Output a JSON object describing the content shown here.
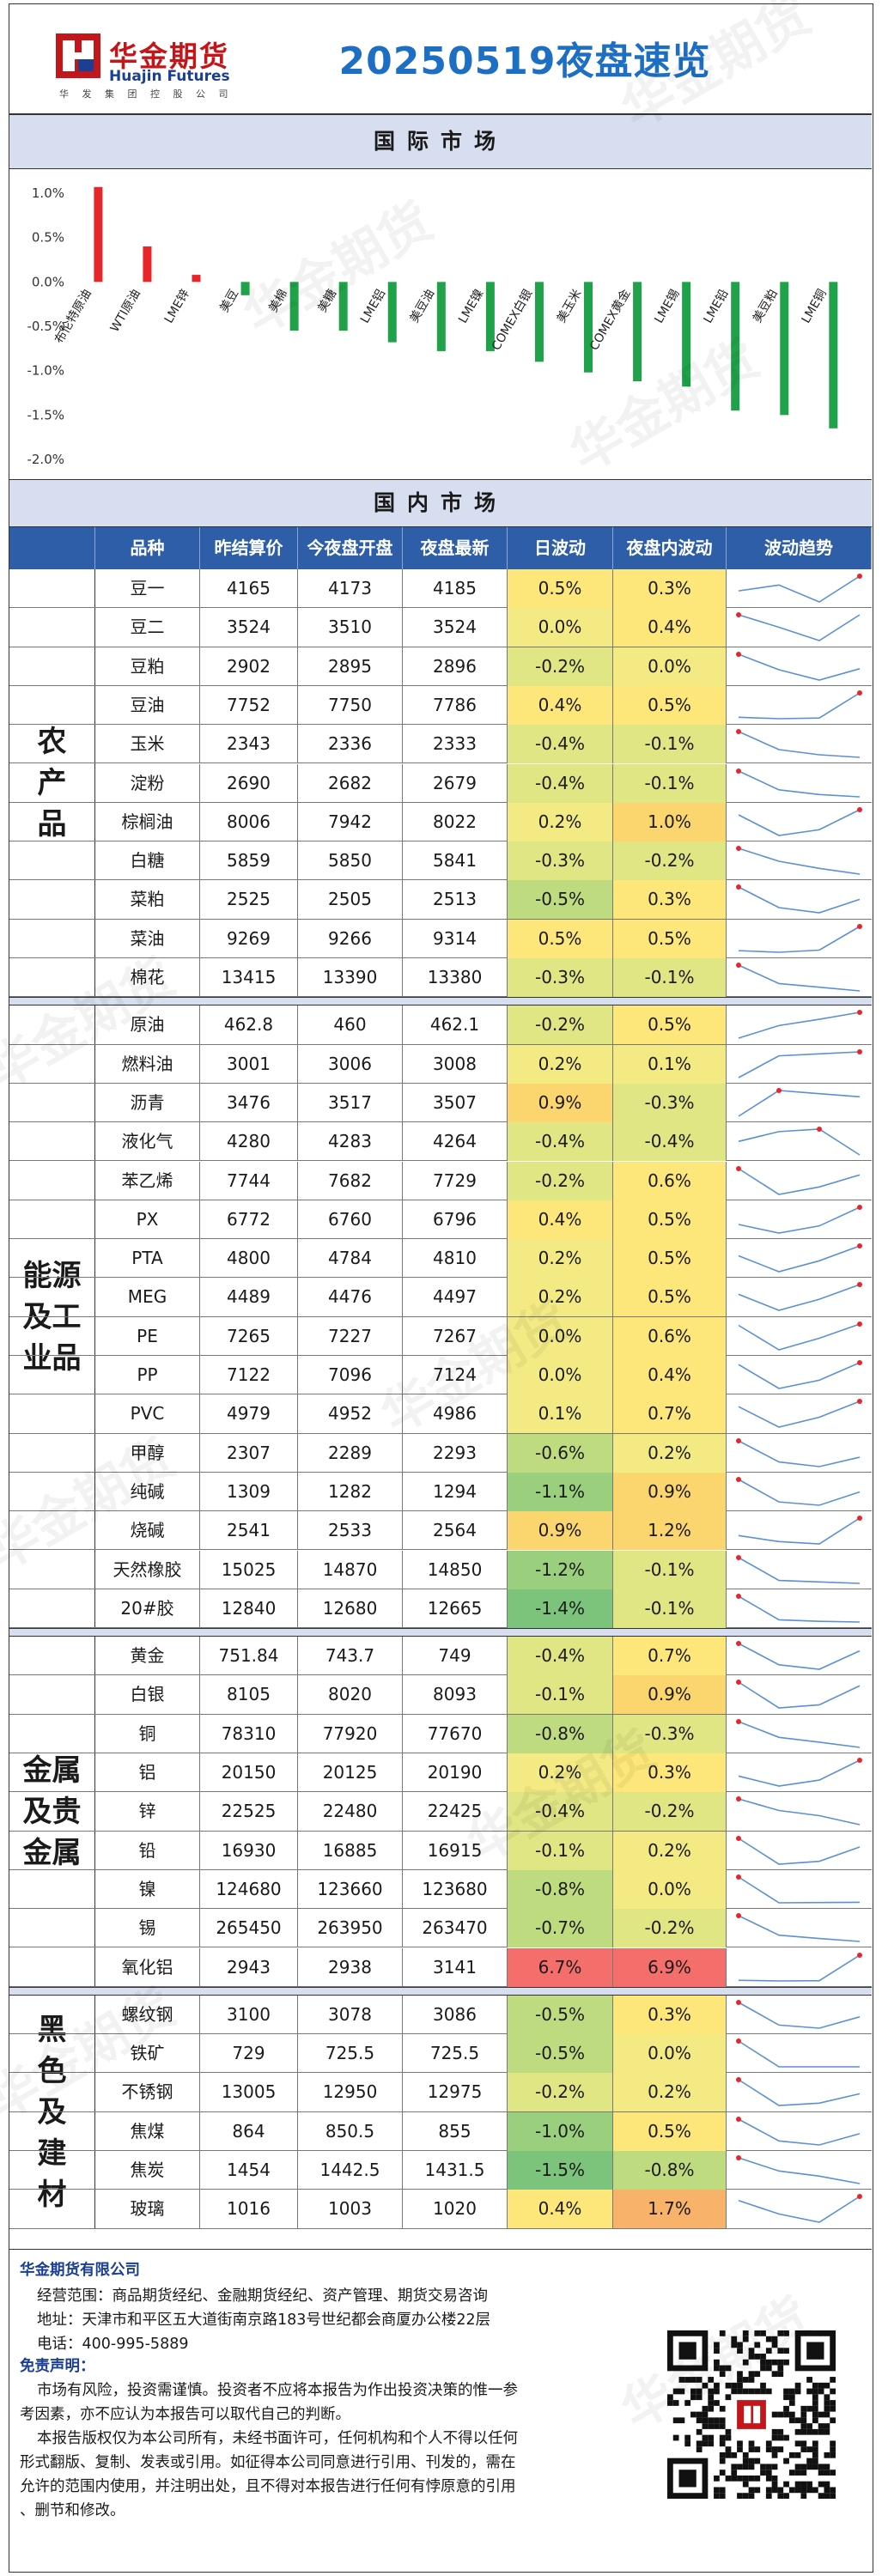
{
  "header": {
    "brand_cn": "华金期货",
    "brand_en": "Huajin Futures",
    "brand_sub": "华 发 集 团 控 股 公 司",
    "title": "20250519夜盘速览"
  },
  "sections": {
    "international": "国际市场",
    "domestic": "国内市场"
  },
  "colors": {
    "up": "#e8262a",
    "down": "#20a24a",
    "header_blue": "#2e5ea8",
    "title_blue": "#1d6fc4",
    "spark_line": "#5b8fd6",
    "spark_dot": "#e8262a"
  },
  "chart_data": {
    "type": "bar",
    "title": "",
    "categories": [
      "布伦特原油",
      "WTI原油",
      "LME锌",
      "美豆",
      "美棉",
      "美糖",
      "LME铝",
      "美豆油",
      "LME镍",
      "COMEX白银",
      "美玉米",
      "COMEX黄金",
      "LME锡",
      "LME铅",
      "美豆粕",
      "LME铜"
    ],
    "values": [
      1.07,
      0.4,
      0.08,
      -0.15,
      -0.55,
      -0.55,
      -0.68,
      -0.78,
      -0.78,
      -0.9,
      -1.02,
      -1.12,
      -1.18,
      -1.45,
      -1.5,
      -1.65
    ],
    "ylim": [
      -2.0,
      1.0
    ],
    "yticks": [
      "1.0%",
      "0.5%",
      "0.0%",
      "-0.5%",
      "-1.0%",
      "-1.5%",
      "-2.0%"
    ],
    "grid": false
  },
  "table": {
    "headers": [
      "品种",
      "昨结算价",
      "今夜盘开盘",
      "夜盘最新",
      "日波动",
      "夜盘内波动",
      "波动趋势"
    ],
    "groups": [
      {
        "label": "农产品",
        "rows": [
          {
            "name": "豆一",
            "prev": "4165",
            "open": "4173",
            "last": "4185",
            "day": "0.5%",
            "night": "0.3%",
            "day_v": 0.5,
            "night_v": 0.3,
            "trend": [
              4165,
              4173,
              4150,
              4185
            ]
          },
          {
            "name": "豆二",
            "prev": "3524",
            "open": "3510",
            "last": "3524",
            "day": "0.0%",
            "night": "0.4%",
            "day_v": 0.0,
            "night_v": 0.4,
            "trend": [
              3524,
              3510,
              3495,
              3524
            ]
          },
          {
            "name": "豆粕",
            "prev": "2902",
            "open": "2895",
            "last": "2896",
            "day": "-0.2%",
            "night": "0.0%",
            "day_v": -0.2,
            "night_v": 0.0,
            "trend": [
              2910,
              2895,
              2885,
              2896
            ]
          },
          {
            "name": "豆油",
            "prev": "7752",
            "open": "7750",
            "last": "7786",
            "day": "0.4%",
            "night": "0.5%",
            "day_v": 0.4,
            "night_v": 0.5,
            "trend": [
              7752,
              7750,
              7751,
              7786
            ]
          },
          {
            "name": "玉米",
            "prev": "2343",
            "open": "2336",
            "last": "2333",
            "day": "-0.4%",
            "night": "-0.1%",
            "day_v": -0.4,
            "night_v": -0.1,
            "trend": [
              2343,
              2336,
              2334,
              2333
            ]
          },
          {
            "name": "淀粉",
            "prev": "2690",
            "open": "2682",
            "last": "2679",
            "day": "-0.4%",
            "night": "-0.1%",
            "day_v": -0.4,
            "night_v": -0.1,
            "trend": [
              2690,
              2682,
              2680,
              2679
            ]
          },
          {
            "name": "棕榈油",
            "prev": "8006",
            "open": "7942",
            "last": "8022",
            "day": "0.2%",
            "night": "1.0%",
            "day_v": 0.2,
            "night_v": 1.0,
            "trend": [
              8006,
              7942,
              7960,
              8022
            ]
          },
          {
            "name": "白糖",
            "prev": "5859",
            "open": "5850",
            "last": "5841",
            "day": "-0.3%",
            "night": "-0.2%",
            "day_v": -0.3,
            "night_v": -0.2,
            "trend": [
              5859,
              5850,
              5845,
              5841
            ]
          },
          {
            "name": "菜粕",
            "prev": "2525",
            "open": "2505",
            "last": "2513",
            "day": "-0.5%",
            "night": "0.3%",
            "day_v": -0.5,
            "night_v": 0.3,
            "trend": [
              2525,
              2505,
              2500,
              2513
            ]
          },
          {
            "name": "菜油",
            "prev": "9269",
            "open": "9266",
            "last": "9314",
            "day": "0.5%",
            "night": "0.5%",
            "day_v": 0.5,
            "night_v": 0.5,
            "trend": [
              9269,
              9266,
              9270,
              9314
            ]
          },
          {
            "name": "棉花",
            "prev": "13415",
            "open": "13390",
            "last": "13380",
            "day": "-0.3%",
            "night": "-0.1%",
            "day_v": -0.3,
            "night_v": -0.1,
            "trend": [
              13415,
              13390,
              13385,
              13380
            ]
          }
        ]
      },
      {
        "label": "能源及工业品",
        "rows": [
          {
            "name": "原油",
            "prev": "462.8",
            "open": "460",
            "last": "462.1",
            "day": "-0.2%",
            "night": "0.5%",
            "day_v": -0.2,
            "night_v": 0.5,
            "trend": [
              458,
              460,
              461,
              462.1
            ]
          },
          {
            "name": "燃料油",
            "prev": "3001",
            "open": "3006",
            "last": "3008",
            "day": "0.2%",
            "night": "0.1%",
            "day_v": 0.2,
            "night_v": 0.1,
            "trend": [
              2995,
              3006,
              3007,
              3008
            ]
          },
          {
            "name": "沥青",
            "prev": "3476",
            "open": "3517",
            "last": "3507",
            "day": "0.9%",
            "night": "-0.3%",
            "day_v": 0.9,
            "night_v": -0.3,
            "trend": [
              3476,
              3517,
              3512,
              3507
            ]
          },
          {
            "name": "液化气",
            "prev": "4280",
            "open": "4283",
            "last": "4264",
            "day": "-0.4%",
            "night": "-0.4%",
            "day_v": -0.4,
            "night_v": -0.4,
            "trend": [
              4275,
              4283,
              4285,
              4264
            ]
          },
          {
            "name": "苯乙烯",
            "prev": "7744",
            "open": "7682",
            "last": "7729",
            "day": "-0.2%",
            "night": "0.6%",
            "day_v": -0.2,
            "night_v": 0.6,
            "trend": [
              7744,
              7682,
              7700,
              7729
            ]
          },
          {
            "name": "PX",
            "prev": "6772",
            "open": "6760",
            "last": "6796",
            "day": "0.4%",
            "night": "0.5%",
            "day_v": 0.4,
            "night_v": 0.5,
            "trend": [
              6772,
              6760,
              6770,
              6796
            ]
          },
          {
            "name": "PTA",
            "prev": "4800",
            "open": "4784",
            "last": "4810",
            "day": "0.2%",
            "night": "0.5%",
            "day_v": 0.2,
            "night_v": 0.5,
            "trend": [
              4800,
              4784,
              4795,
              4810
            ]
          },
          {
            "name": "MEG",
            "prev": "4489",
            "open": "4476",
            "last": "4497",
            "day": "0.2%",
            "night": "0.5%",
            "day_v": 0.2,
            "night_v": 0.5,
            "trend": [
              4489,
              4476,
              4485,
              4497
            ]
          },
          {
            "name": "PE",
            "prev": "7265",
            "open": "7227",
            "last": "7267",
            "day": "0.0%",
            "night": "0.6%",
            "day_v": 0.0,
            "night_v": 0.6,
            "trend": [
              7265,
              7227,
              7245,
              7267
            ]
          },
          {
            "name": "PP",
            "prev": "7122",
            "open": "7096",
            "last": "7124",
            "day": "0.0%",
            "night": "0.4%",
            "day_v": 0.0,
            "night_v": 0.4,
            "trend": [
              7122,
              7096,
              7105,
              7124
            ]
          },
          {
            "name": "PVC",
            "prev": "4979",
            "open": "4952",
            "last": "4986",
            "day": "0.1%",
            "night": "0.7%",
            "day_v": 0.1,
            "night_v": 0.7,
            "trend": [
              4979,
              4952,
              4965,
              4986
            ]
          },
          {
            "name": "甲醇",
            "prev": "2307",
            "open": "2289",
            "last": "2293",
            "day": "-0.6%",
            "night": "0.2%",
            "day_v": -0.6,
            "night_v": 0.2,
            "trend": [
              2307,
              2289,
              2285,
              2293
            ]
          },
          {
            "name": "纯碱",
            "prev": "1309",
            "open": "1282",
            "last": "1294",
            "day": "-1.1%",
            "night": "0.9%",
            "day_v": -1.1,
            "night_v": 0.9,
            "trend": [
              1309,
              1282,
              1278,
              1294
            ]
          },
          {
            "name": "烧碱",
            "prev": "2541",
            "open": "2533",
            "last": "2564",
            "day": "0.9%",
            "night": "1.2%",
            "day_v": 0.9,
            "night_v": 1.2,
            "trend": [
              2541,
              2533,
              2530,
              2564
            ]
          },
          {
            "name": "天然橡胶",
            "prev": "15025",
            "open": "14870",
            "last": "14850",
            "day": "-1.2%",
            "night": "-0.1%",
            "day_v": -1.2,
            "night_v": -0.1,
            "trend": [
              15025,
              14870,
              14860,
              14850
            ]
          },
          {
            "name": "20#胶",
            "prev": "12840",
            "open": "12680",
            "last": "12665",
            "day": "-1.4%",
            "night": "-0.1%",
            "day_v": -1.4,
            "night_v": -0.1,
            "trend": [
              12840,
              12680,
              12670,
              12665
            ]
          }
        ]
      },
      {
        "label": "金属及贵金属",
        "rows": [
          {
            "name": "黄金",
            "prev": "751.84",
            "open": "743.7",
            "last": "749",
            "day": "-0.4%",
            "night": "0.7%",
            "day_v": -0.4,
            "night_v": 0.7,
            "trend": [
              751.84,
              743.7,
              742,
              749
            ]
          },
          {
            "name": "白银",
            "prev": "8105",
            "open": "8020",
            "last": "8093",
            "day": "-0.1%",
            "night": "0.9%",
            "day_v": -0.1,
            "night_v": 0.9,
            "trend": [
              8105,
              8020,
              8030,
              8093
            ]
          },
          {
            "name": "铜",
            "prev": "78310",
            "open": "77920",
            "last": "77670",
            "day": "-0.8%",
            "night": "-0.3%",
            "day_v": -0.8,
            "night_v": -0.3,
            "trend": [
              78310,
              77920,
              77800,
              77670
            ]
          },
          {
            "name": "铝",
            "prev": "20150",
            "open": "20125",
            "last": "20190",
            "day": "0.2%",
            "night": "0.3%",
            "day_v": 0.2,
            "night_v": 0.3,
            "trend": [
              20150,
              20125,
              20140,
              20190
            ]
          },
          {
            "name": "锌",
            "prev": "22525",
            "open": "22480",
            "last": "22425",
            "day": "-0.4%",
            "night": "-0.2%",
            "day_v": -0.4,
            "night_v": -0.2,
            "trend": [
              22525,
              22480,
              22460,
              22425
            ]
          },
          {
            "name": "铅",
            "prev": "16930",
            "open": "16885",
            "last": "16915",
            "day": "-0.1%",
            "night": "0.2%",
            "day_v": -0.1,
            "night_v": 0.2,
            "trend": [
              16930,
              16885,
              16890,
              16915
            ]
          },
          {
            "name": "镍",
            "prev": "124680",
            "open": "123660",
            "last": "123680",
            "day": "-0.8%",
            "night": "0.0%",
            "day_v": -0.8,
            "night_v": 0.0,
            "trend": [
              124680,
              123660,
              123670,
              123680
            ]
          },
          {
            "name": "锡",
            "prev": "265450",
            "open": "263950",
            "last": "263470",
            "day": "-0.7%",
            "night": "-0.2%",
            "day_v": -0.7,
            "night_v": -0.2,
            "trend": [
              265450,
              263950,
              263700,
              263470
            ]
          },
          {
            "name": "氧化铝",
            "prev": "2943",
            "open": "2938",
            "last": "3141",
            "day": "6.7%",
            "night": "6.9%",
            "day_v": 6.7,
            "night_v": 6.9,
            "trend": [
              2943,
              2938,
              2940,
              3141
            ]
          }
        ]
      },
      {
        "label": "黑色及建材",
        "rows": [
          {
            "name": "螺纹钢",
            "prev": "3100",
            "open": "3078",
            "last": "3086",
            "day": "-0.5%",
            "night": "0.3%",
            "day_v": -0.5,
            "night_v": 0.3,
            "trend": [
              3100,
              3078,
              3075,
              3086
            ]
          },
          {
            "name": "铁矿",
            "prev": "729",
            "open": "725.5",
            "last": "725.5",
            "day": "-0.5%",
            "night": "0.0%",
            "day_v": -0.5,
            "night_v": 0.0,
            "trend": [
              729,
              725.5,
              725.5,
              725.5
            ]
          },
          {
            "name": "不锈钢",
            "prev": "13005",
            "open": "12950",
            "last": "12975",
            "day": "-0.2%",
            "night": "0.2%",
            "day_v": -0.2,
            "night_v": 0.2,
            "trend": [
              13005,
              12950,
              12955,
              12975
            ]
          },
          {
            "name": "焦煤",
            "prev": "864",
            "open": "850.5",
            "last": "855",
            "day": "-1.0%",
            "night": "0.5%",
            "day_v": -1.0,
            "night_v": 0.5,
            "trend": [
              864,
              850.5,
              848,
              855
            ]
          },
          {
            "name": "焦炭",
            "prev": "1454",
            "open": "1442.5",
            "last": "1431.5",
            "day": "-1.5%",
            "night": "-0.8%",
            "day_v": -1.5,
            "night_v": -0.8,
            "trend": [
              1454,
              1442.5,
              1438,
              1431.5
            ]
          },
          {
            "name": "玻璃",
            "prev": "1016",
            "open": "1003",
            "last": "1020",
            "day": "0.4%",
            "night": "1.7%",
            "day_v": 0.4,
            "night_v": 1.7,
            "trend": [
              1016,
              1003,
              995,
              1020
            ]
          }
        ]
      }
    ]
  },
  "footer": {
    "company": "华金期货有限公司",
    "scope": "经营范围：商品期货经纪、金融期货经纪、资产管理、期货交易咨询",
    "address": "地址：天津市和平区五大道街南京路183号世纪都会商厦办公楼22层",
    "phone": "电话：400-995-5889",
    "disclaimer_title": "免责声明：",
    "disclaimer_lines": [
      "市场有风险，投资需谨慎。投资者不应将本报告为作出投资决策的惟一参",
      "考因素，亦不应认为本报告可以取代自己的判断。",
      "本报告版权仅为本公司所有，未经书面许可，任何机构和个人不得以任何",
      "形式翻版、复制、发表或引用。如征得本公司同意进行引用、刊发的，需在",
      "允许的范围内使用，并注明出处，且不得对本报告进行任何有悖原意的引用",
      "、删节和修改。"
    ]
  }
}
